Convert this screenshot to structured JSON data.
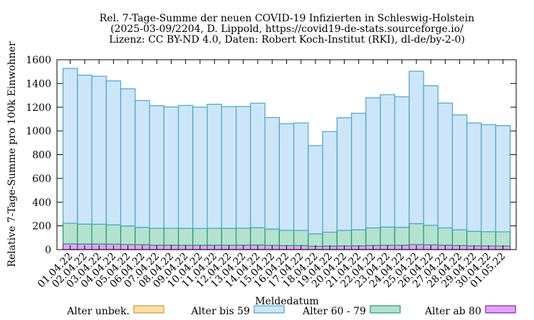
{
  "chart_data": {
    "type": "bar",
    "stacked": true,
    "title": [
      "Rel. 7-Tage-Summe der neuen COVID-19 Infizierten in Schleswig-Holstein",
      "(2025-03-09/2204, D. Lippold, https://covid19-de-stats.sourceforge.io/",
      "Lizenz: CC BY-ND 4.0, Daten: Robert Koch-Institut (RKI), dl-de/by-2-0)"
    ],
    "xlabel": "Meldedatum",
    "ylabel": "Relative 7-Tage-Summe pro 100k Einwohner",
    "ylim": [
      0,
      1600
    ],
    "yticks": [
      0,
      200,
      400,
      600,
      800,
      1000,
      1200,
      1400,
      1600
    ],
    "grid": false,
    "legend_position": "bottom",
    "categories": [
      "01.04.22",
      "02.04.22",
      "03.04.22",
      "04.04.22",
      "05.04.22",
      "06.04.22",
      "07.04.22",
      "08.04.22",
      "09.04.22",
      "10.04.22",
      "11.04.22",
      "12.04.22",
      "13.04.22",
      "14.04.22",
      "15.04.22",
      "16.04.22",
      "17.04.22",
      "18.04.22",
      "19.04.22",
      "20.04.22",
      "21.04.22",
      "22.04.22",
      "23.04.22",
      "24.04.22",
      "25.04.22",
      "26.04.22",
      "27.04.22",
      "28.04.22",
      "29.04.22",
      "30.04.22",
      "01.05.22"
    ],
    "series": [
      {
        "name": "Alter ab 80",
        "fill": "#dda6f2",
        "stroke": "#8a1fb4",
        "values": [
          48,
          47,
          47,
          46,
          43,
          42,
          38,
          38,
          37,
          37,
          38,
          37,
          38,
          39,
          36,
          34,
          34,
          28,
          30,
          31,
          32,
          35,
          37,
          37,
          42,
          40,
          38,
          34,
          32,
          31,
          30
        ]
      },
      {
        "name": "Alter 60 - 79",
        "fill": "#b5e2cf",
        "stroke": "#1e9a6a",
        "values": [
          174,
          168,
          167,
          163,
          157,
          146,
          142,
          142,
          142,
          141,
          142,
          142,
          143,
          146,
          137,
          129,
          128,
          105,
          117,
          131,
          135,
          148,
          153,
          151,
          177,
          165,
          145,
          133,
          122,
          120,
          120
        ]
      },
      {
        "name": "Alter bis 59",
        "fill": "#cce6f8",
        "stroke": "#4aa3d0",
        "values": [
          1305,
          1255,
          1247,
          1213,
          1155,
          1068,
          1033,
          1022,
          1036,
          1023,
          1045,
          1026,
          1025,
          1048,
          940,
          898,
          905,
          743,
          848,
          949,
          982,
          1096,
          1116,
          1100,
          1284,
          1176,
          1052,
          968,
          913,
          902,
          895
        ]
      },
      {
        "name": "Alter unbek.",
        "fill": "#fbe0a8",
        "stroke": "#d39b27",
        "values": [
          0,
          0,
          0,
          0,
          0,
          0,
          0,
          0,
          0,
          0,
          0,
          0,
          0,
          0,
          0,
          0,
          0,
          0,
          0,
          0,
          0,
          0,
          0,
          0,
          0,
          0,
          0,
          0,
          0,
          0,
          0
        ]
      }
    ],
    "legend_order": [
      "Alter unbek.",
      "Alter bis 59",
      "Alter 60 - 79",
      "Alter ab 80"
    ]
  }
}
